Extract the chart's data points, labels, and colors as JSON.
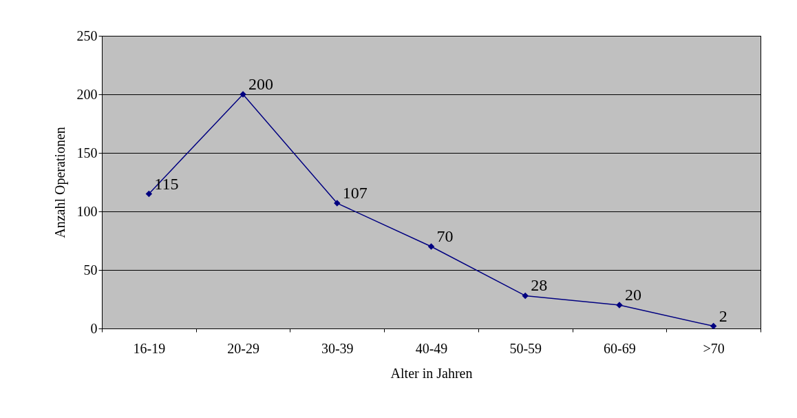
{
  "chart_data": {
    "type": "line",
    "xlabel": "Alter in Jahren",
    "ylabel": "Anzahl Operationen",
    "categories": [
      "16-19",
      "20-29",
      "30-39",
      "40-49",
      "50-59",
      "60-69",
      ">70"
    ],
    "series": [
      {
        "color": "#000080",
        "values": [
          115,
          200,
          107,
          70,
          28,
          20,
          2
        ]
      }
    ],
    "ylim": [
      0,
      250
    ],
    "yticks": [
      0,
      50,
      100,
      150,
      200,
      250
    ],
    "grid": "y",
    "marker": "diamond",
    "line_style": "solid",
    "data_labels": true
  }
}
